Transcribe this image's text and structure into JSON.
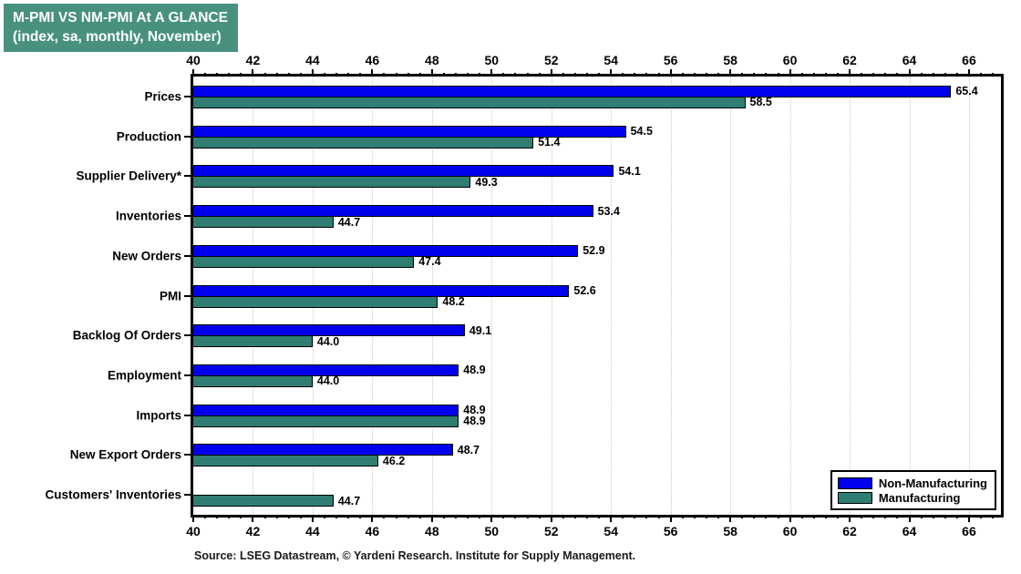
{
  "title": {
    "line1": "M-PMI VS NM-PMI At A GLANCE",
    "line2": "(index, sa, monthly, November)"
  },
  "source_note": "Source: LSEG Datastream, © Yardeni Research. Institute for Supply Management.",
  "colors": {
    "title_bg": "#48917f",
    "non_manufacturing": "#0000ee",
    "manufacturing": "#2f7d73",
    "grid": "#c7c7c7"
  },
  "chart_data": {
    "type": "bar",
    "orientation": "horizontal",
    "title": "M-PMI VS NM-PMI At A GLANCE (index, sa, monthly, November)",
    "categories": [
      "Prices",
      "Production",
      "Supplier Delivery*",
      "Inventories",
      "New Orders",
      "PMI",
      "Backlog Of Orders",
      "Employment",
      "Imports",
      "New Export Orders",
      "Customers' Inventories"
    ],
    "series": [
      {
        "name": "Non-Manufacturing",
        "color": "#0000ee",
        "values": [
          65.4,
          54.5,
          54.1,
          53.4,
          52.9,
          52.6,
          49.1,
          48.9,
          48.9,
          48.7,
          null
        ]
      },
      {
        "name": "Manufacturing",
        "color": "#2f7d73",
        "values": [
          58.5,
          51.4,
          49.3,
          44.7,
          47.4,
          48.2,
          44.0,
          44.0,
          48.9,
          46.2,
          44.7
        ]
      }
    ],
    "xlim": [
      40,
      67.07
    ],
    "ticks": {
      "major_start": 40,
      "major_end": 66,
      "major_step": 2,
      "minor_step": 0.4
    },
    "tick_labels": [
      "40",
      "42",
      "44",
      "46",
      "48",
      "50",
      "52",
      "54",
      "56",
      "58",
      "60",
      "62",
      "64",
      "66"
    ],
    "grid": "dotted vertical gridlines at major ticks",
    "legend_position": "bottom-right inside plot",
    "value_label_decimals": 1
  }
}
